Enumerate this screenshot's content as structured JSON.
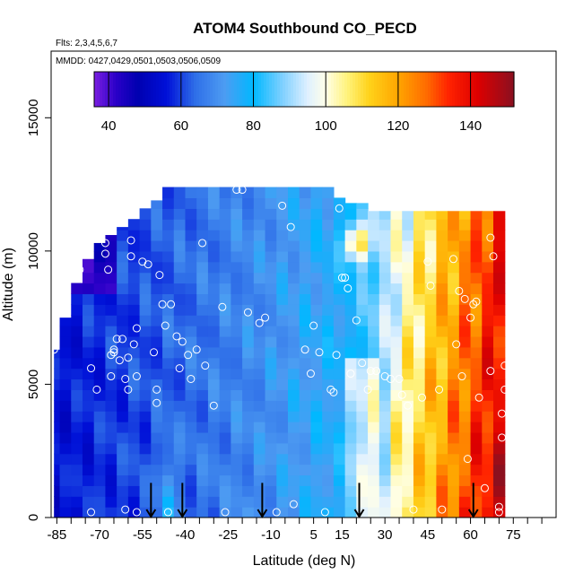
{
  "chart_data": {
    "type": "heatmap",
    "title": "ATOM4 Southbound CO_PECD",
    "subtitle_flights": "Flts: 2,3,4,5,6,7",
    "subtitle_dates": "MMDD: 0427,0429,0501,0503,0506,0509",
    "xlabel": "Latitude (deg N)",
    "ylabel": "Altitude (m)",
    "xlim": [
      -87,
      90
    ],
    "ylim": [
      0,
      17500
    ],
    "x_ticks": [
      -85,
      -70,
      -55,
      -40,
      -25,
      -10,
      5,
      15,
      30,
      45,
      60,
      75
    ],
    "x_tick_labels": [
      "-85",
      "-70",
      "-55",
      "-40",
      "-25",
      "-10",
      "5",
      "15",
      "30",
      "45",
      "60",
      "75"
    ],
    "y_ticks": [
      0,
      5000,
      10000,
      15000
    ],
    "y_tick_labels": [
      "0",
      "5000",
      "10000",
      "15000"
    ],
    "colorbar": {
      "range": [
        36,
        152
      ],
      "ticks": [
        40,
        60,
        80,
        100,
        120,
        140
      ],
      "tick_labels": [
        "40",
        "60",
        "80",
        "100",
        "120",
        "140"
      ]
    },
    "color_stops": [
      {
        "v": 36,
        "c": "#7b1fe0"
      },
      {
        "v": 42,
        "c": "#2a00c8"
      },
      {
        "v": 48,
        "c": "#0000b0"
      },
      {
        "v": 56,
        "c": "#0010d8"
      },
      {
        "v": 64,
        "c": "#2f6fe8"
      },
      {
        "v": 72,
        "c": "#4d9cf2"
      },
      {
        "v": 80,
        "c": "#00b8ff"
      },
      {
        "v": 88,
        "c": "#7fd0ff"
      },
      {
        "v": 95,
        "c": "#dff0ff"
      },
      {
        "v": 100,
        "c": "#ffffe8"
      },
      {
        "v": 106,
        "c": "#fff27a"
      },
      {
        "v": 112,
        "c": "#ffd21a"
      },
      {
        "v": 120,
        "c": "#ffa500"
      },
      {
        "v": 128,
        "c": "#ff6a00"
      },
      {
        "v": 134,
        "c": "#ff2200"
      },
      {
        "v": 142,
        "c": "#dd0000"
      },
      {
        "v": 152,
        "c": "#8a1020"
      }
    ],
    "columns": [
      {
        "lat": -86,
        "top": 6300
      },
      {
        "lat": -82,
        "top": 7500
      },
      {
        "lat": -78,
        "top": 8800
      },
      {
        "lat": -74,
        "top": 9700
      },
      {
        "lat": -70,
        "top": 10300
      },
      {
        "lat": -66,
        "top": 10600
      },
      {
        "lat": -62,
        "top": 10900
      },
      {
        "lat": -58,
        "top": 11200
      },
      {
        "lat": -54,
        "top": 11600
      },
      {
        "lat": -50,
        "top": 11900
      },
      {
        "lat": -46,
        "top": 12400
      },
      {
        "lat": -42,
        "top": 12400
      },
      {
        "lat": -38,
        "top": 12400
      },
      {
        "lat": -34,
        "top": 12400
      },
      {
        "lat": -30,
        "top": 12400
      },
      {
        "lat": -26,
        "top": 12400
      },
      {
        "lat": -22,
        "top": 12400
      },
      {
        "lat": -18,
        "top": 12400
      },
      {
        "lat": -14,
        "top": 12400
      },
      {
        "lat": -10,
        "top": 12400
      },
      {
        "lat": -6,
        "top": 12400
      },
      {
        "lat": -2,
        "top": 12400
      },
      {
        "lat": 2,
        "top": 12400
      },
      {
        "lat": 6,
        "top": 12400
      },
      {
        "lat": 10,
        "top": 12400
      },
      {
        "lat": 14,
        "top": 12000
      },
      {
        "lat": 18,
        "top": 11800
      },
      {
        "lat": 22,
        "top": 11800
      },
      {
        "lat": 26,
        "top": 11500
      },
      {
        "lat": 30,
        "top": 11500
      },
      {
        "lat": 34,
        "top": 11500
      },
      {
        "lat": 38,
        "top": 11500
      },
      {
        "lat": 42,
        "top": 11500
      },
      {
        "lat": 46,
        "top": 11500
      },
      {
        "lat": 50,
        "top": 11500
      },
      {
        "lat": 54,
        "top": 11500
      },
      {
        "lat": 58,
        "top": 11500
      },
      {
        "lat": 62,
        "top": 11500
      },
      {
        "lat": 66,
        "top": 11500
      },
      {
        "lat": 70,
        "top": 11500
      }
    ],
    "observations": [
      [
        -86,
        6300
      ],
      [
        -83,
        9500
      ],
      [
        -80,
        9500
      ],
      [
        -77,
        9300
      ],
      [
        -73,
        5600
      ],
      [
        -73,
        200
      ],
      [
        -71,
        4800
      ],
      [
        -68,
        10300
      ],
      [
        -68,
        9900
      ],
      [
        -67,
        9300
      ],
      [
        -66,
        5300
      ],
      [
        -66,
        6100
      ],
      [
        -65,
        6200
      ],
      [
        -65,
        6300
      ],
      [
        -64,
        6700
      ],
      [
        -63,
        5900
      ],
      [
        -62,
        6700
      ],
      [
        -61,
        5200
      ],
      [
        -61,
        300
      ],
      [
        -60,
        6000
      ],
      [
        -60,
        4800
      ],
      [
        -59,
        10400
      ],
      [
        -59,
        9800
      ],
      [
        -58,
        6500
      ],
      [
        -57,
        7100
      ],
      [
        -57,
        5300
      ],
      [
        -57,
        200
      ],
      [
        -55,
        9600
      ],
      [
        -53,
        9500
      ],
      [
        -51,
        6200
      ],
      [
        -50,
        4800
      ],
      [
        -50,
        4300
      ],
      [
        -49,
        9100
      ],
      [
        -48,
        8000
      ],
      [
        -47,
        7200
      ],
      [
        -46,
        200
      ],
      [
        -45,
        8000
      ],
      [
        -43,
        6800
      ],
      [
        -42,
        5600
      ],
      [
        -41,
        6600
      ],
      [
        -39,
        6100
      ],
      [
        -38,
        5200
      ],
      [
        -36,
        6300
      ],
      [
        -34,
        10300
      ],
      [
        -33,
        5700
      ],
      [
        -30,
        4200
      ],
      [
        -27,
        7900
      ],
      [
        -26,
        200
      ],
      [
        -22,
        12300
      ],
      [
        -20,
        12300
      ],
      [
        -18,
        7700
      ],
      [
        -14,
        7300
      ],
      [
        -12,
        7500
      ],
      [
        -8,
        200
      ],
      [
        -6,
        11700
      ],
      [
        -3,
        10900
      ],
      [
        -2,
        500
      ],
      [
        2,
        6300
      ],
      [
        4,
        5400
      ],
      [
        5,
        7200
      ],
      [
        7,
        6200
      ],
      [
        9,
        200
      ],
      [
        11,
        4800
      ],
      [
        12,
        4700
      ],
      [
        13,
        6100
      ],
      [
        14,
        11600
      ],
      [
        15,
        9000
      ],
      [
        16,
        9000
      ],
      [
        17,
        8600
      ],
      [
        18,
        5400
      ],
      [
        20,
        7400
      ],
      [
        22,
        5800
      ],
      [
        24,
        4800
      ],
      [
        25,
        5500
      ],
      [
        27,
        5500
      ],
      [
        30,
        5300
      ],
      [
        32,
        5200
      ],
      [
        35,
        5200
      ],
      [
        36,
        4600
      ],
      [
        38,
        4200
      ],
      [
        40,
        300
      ],
      [
        43,
        4500
      ],
      [
        45,
        9600
      ],
      [
        46,
        8700
      ],
      [
        49,
        4800
      ],
      [
        50,
        300
      ],
      [
        54,
        9700
      ],
      [
        55,
        6500
      ],
      [
        56,
        8500
      ],
      [
        57,
        5300
      ],
      [
        58,
        8200
      ],
      [
        59,
        2200
      ],
      [
        60,
        7500
      ],
      [
        61,
        8000
      ],
      [
        62,
        8100
      ],
      [
        63,
        4500
      ],
      [
        65,
        1100
      ],
      [
        67,
        5500
      ],
      [
        67,
        10500
      ],
      [
        68,
        9800
      ],
      [
        70,
        400
      ],
      [
        70,
        200
      ],
      [
        71,
        3900
      ],
      [
        71,
        3000
      ],
      [
        72,
        4800
      ],
      [
        72,
        5700
      ]
    ],
    "flight_arrow_latitudes": [
      -52,
      -41,
      -13,
      21,
      61
    ]
  }
}
